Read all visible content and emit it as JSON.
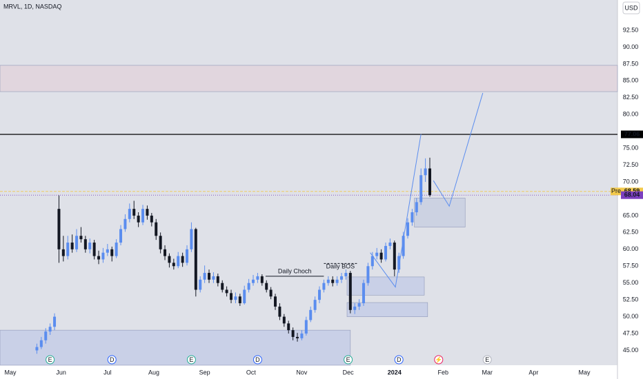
{
  "chart_data": {
    "type": "candlestick",
    "title": "MRVL, 1D, NASDAQ",
    "currency": "USD",
    "ylim": [
      42.8,
      97.0
    ],
    "xlim": [
      -4.7,
      275
    ],
    "yticks": [
      {
        "value": 45,
        "label": "45.00"
      },
      {
        "value": 47.5,
        "label": "47.50"
      },
      {
        "value": 50,
        "label": "50.00"
      },
      {
        "value": 52.5,
        "label": "52.50"
      },
      {
        "value": 55,
        "label": "55.00"
      },
      {
        "value": 57.5,
        "label": "57.50"
      },
      {
        "value": 60,
        "label": "60.00"
      },
      {
        "value": 62.5,
        "label": "62.50"
      },
      {
        "value": 65,
        "label": "65.00"
      },
      {
        "value": 70,
        "label": "70.00"
      },
      {
        "value": 72.5,
        "label": "72.50"
      },
      {
        "value": 75,
        "label": "75.00"
      },
      {
        "value": 80,
        "label": "80.00"
      },
      {
        "value": 82.5,
        "label": "82.50"
      },
      {
        "value": 85,
        "label": "85.00"
      },
      {
        "value": 87.5,
        "label": "87.50"
      },
      {
        "value": 90,
        "label": "90.00"
      },
      {
        "value": 92.5,
        "label": "92.50"
      }
    ],
    "xticks": [
      {
        "value": 0,
        "label": "May"
      },
      {
        "value": 23,
        "label": "Jun"
      },
      {
        "value": 44,
        "label": "Jul"
      },
      {
        "value": 65,
        "label": "Aug"
      },
      {
        "value": 88,
        "label": "Sep"
      },
      {
        "value": 109,
        "label": "Oct"
      },
      {
        "value": 132,
        "label": "Nov"
      },
      {
        "value": 153,
        "label": "Dec"
      },
      {
        "value": 174,
        "label": "2024"
      },
      {
        "value": 196,
        "label": "Feb"
      },
      {
        "value": 216,
        "label": "Mar"
      },
      {
        "value": 237,
        "label": "Apr"
      },
      {
        "value": 260,
        "label": "May"
      }
    ],
    "up_color": "#5b8def",
    "down_color": "#131722",
    "candles": [
      [
        12,
        45,
        46,
        44.5,
        45.5
      ],
      [
        14,
        45.5,
        47,
        45.2,
        46.5
      ],
      [
        16,
        46.5,
        48.3,
        46,
        47.8
      ],
      [
        18,
        47.8,
        49,
        47.3,
        48.5
      ],
      [
        20,
        48.5,
        50.5,
        48,
        50
      ],
      [
        22,
        66,
        68,
        58,
        60
      ],
      [
        24,
        60,
        62,
        58.2,
        59
      ],
      [
        26,
        59,
        62,
        58.5,
        61
      ],
      [
        28,
        61,
        62.2,
        59.5,
        60
      ],
      [
        30,
        60,
        63,
        59.6,
        62
      ],
      [
        32,
        62,
        63.3,
        61,
        61.5
      ],
      [
        34,
        61.5,
        62,
        59.5,
        60
      ],
      [
        36,
        60,
        61.6,
        59.4,
        61
      ],
      [
        38,
        61,
        61.4,
        58.5,
        59
      ],
      [
        40,
        59,
        59.8,
        57.8,
        58.5
      ],
      [
        42,
        58.5,
        60.2,
        58,
        59.5
      ],
      [
        44,
        59.5,
        60.8,
        59,
        60
      ],
      [
        46,
        60,
        60.4,
        58.2,
        59
      ],
      [
        48,
        59,
        61.5,
        58.7,
        61
      ],
      [
        50,
        61,
        63.6,
        60.6,
        63
      ],
      [
        52,
        63,
        65.2,
        62.6,
        64.5
      ],
      [
        54,
        64.5,
        66.8,
        64,
        66
      ],
      [
        56,
        66,
        67.2,
        64.5,
        65
      ],
      [
        58,
        65,
        65.5,
        63.3,
        64
      ],
      [
        60,
        64,
        66.6,
        63.6,
        66
      ],
      [
        62,
        66,
        66.5,
        64.4,
        65
      ],
      [
        64,
        65,
        65.4,
        63.4,
        64
      ],
      [
        66,
        64,
        64.5,
        61.4,
        62
      ],
      [
        68,
        62,
        62.5,
        59.4,
        60
      ],
      [
        70,
        60,
        60.6,
        58.4,
        59
      ],
      [
        72,
        59,
        59.4,
        57.3,
        58
      ],
      [
        74,
        58,
        58.6,
        57,
        57.5
      ],
      [
        76,
        57.5,
        59.6,
        57.2,
        59
      ],
      [
        78,
        59,
        59.5,
        57.4,
        58
      ],
      [
        80,
        58,
        60.6,
        57.6,
        60
      ],
      [
        82,
        60,
        64,
        59.6,
        63
      ],
      [
        84,
        63,
        63.2,
        53,
        54
      ],
      [
        86,
        54,
        56,
        53.6,
        55.5
      ],
      [
        88,
        55.5,
        57.6,
        55,
        56.5
      ],
      [
        90,
        56.5,
        57,
        55,
        55.5
      ],
      [
        92,
        55.5,
        56.6,
        55,
        56
      ],
      [
        94,
        56,
        56.4,
        54.5,
        55
      ],
      [
        96,
        55,
        55.4,
        53.6,
        54
      ],
      [
        98,
        54,
        54.5,
        53,
        53.5
      ],
      [
        100,
        53.5,
        54,
        52,
        52.5
      ],
      [
        102,
        52.5,
        53.6,
        52,
        53
      ],
      [
        104,
        53,
        53.4,
        51.6,
        52
      ],
      [
        106,
        52,
        54.6,
        51.8,
        54
      ],
      [
        108,
        54,
        55.6,
        53.6,
        55
      ],
      [
        110,
        55,
        56.2,
        54.6,
        55.5
      ],
      [
        112,
        55.5,
        56.5,
        55,
        56
      ],
      [
        114,
        56,
        56.3,
        54.6,
        55
      ],
      [
        116,
        55,
        55.4,
        53.6,
        54
      ],
      [
        118,
        54,
        54.4,
        52.6,
        53
      ],
      [
        120,
        53,
        53.4,
        51,
        51.5
      ],
      [
        122,
        51.5,
        52,
        49.5,
        50
      ],
      [
        124,
        50,
        50.4,
        48.5,
        49
      ],
      [
        126,
        49,
        49.4,
        47.5,
        48
      ],
      [
        128,
        48,
        48.4,
        46.5,
        47
      ],
      [
        130,
        47,
        47.6,
        46.3,
        46.8
      ],
      [
        132,
        46.8,
        48,
        46.5,
        47.5
      ],
      [
        134,
        47.5,
        50,
        47.2,
        49.5
      ],
      [
        136,
        49.5,
        51.5,
        49.2,
        51
      ],
      [
        138,
        51,
        53,
        50.6,
        52.5
      ],
      [
        140,
        52.5,
        54.5,
        52,
        54
      ],
      [
        142,
        54,
        55.5,
        53.6,
        55
      ],
      [
        144,
        55,
        56,
        54.6,
        55.5
      ],
      [
        146,
        55.5,
        56,
        54.5,
        55
      ],
      [
        148,
        55,
        56,
        54.6,
        55.5
      ],
      [
        150,
        55.5,
        56.5,
        55,
        56
      ],
      [
        152,
        56,
        57,
        55.5,
        56.5
      ],
      [
        154,
        56.5,
        56.8,
        50.5,
        51
      ],
      [
        156,
        51,
        52,
        50.4,
        51.5
      ],
      [
        158,
        51.5,
        52.6,
        51,
        52
      ],
      [
        160,
        52,
        55.5,
        51.6,
        55
      ],
      [
        162,
        55,
        58,
        54.6,
        57.5
      ],
      [
        164,
        57.5,
        59.6,
        57,
        59
      ],
      [
        166,
        59,
        60.2,
        58.5,
        59.5
      ],
      [
        168,
        59.5,
        60,
        58,
        58.5
      ],
      [
        170,
        58.5,
        61,
        58.2,
        60.5
      ],
      [
        172,
        60.5,
        61.6,
        60,
        61
      ],
      [
        174,
        61,
        61.3,
        56,
        57
      ],
      [
        176,
        57,
        59.5,
        56.5,
        59
      ],
      [
        178,
        59,
        62.6,
        58.6,
        62
      ],
      [
        180,
        62,
        64.6,
        61.6,
        64
      ],
      [
        182,
        64,
        66,
        63.5,
        65.5
      ],
      [
        184,
        65.5,
        67.6,
        65,
        67
      ],
      [
        186,
        67,
        72,
        66.6,
        71
      ],
      [
        188,
        71,
        73.5,
        70,
        72
      ],
      [
        190,
        72,
        73.6,
        67.8,
        68.04
      ]
    ],
    "zones": [
      {
        "x": [
          -4.7,
          275
        ],
        "y": [
          83.4,
          87.3
        ],
        "color": "#e2d4dc"
      },
      {
        "x": [
          183,
          206
        ],
        "y": [
          63.3,
          67.6
        ],
        "color": "#c9cfe0"
      },
      {
        "x": [
          152.5,
          187.5
        ],
        "y": [
          53.2,
          55.9
        ],
        "color": "#c5cde6"
      },
      {
        "x": [
          152.5,
          189
        ],
        "y": [
          50.0,
          52.1
        ],
        "color": "#c5cde6"
      },
      {
        "x": [
          -4.7,
          154
        ],
        "y": [
          42.8,
          48.0
        ],
        "color": "#c5cde6"
      }
    ],
    "annotations": [
      {
        "label": "Daily Choch",
        "x": [
          115.6,
          142
        ],
        "y": 56
      },
      {
        "label": "Daily BOS",
        "x": [
          142,
          157
        ],
        "y": 57.9
      }
    ],
    "paths": [
      [
        [
          163,
          59.5
        ],
        [
          174.4,
          54.4
        ],
        [
          186,
          77.1
        ]
      ],
      [
        [
          191.6,
          70.2
        ],
        [
          198.8,
          66.4
        ],
        [
          214,
          83.2
        ]
      ]
    ],
    "levels": [
      {
        "value": 77.06,
        "color": "#000000"
      },
      {
        "value": 68.59,
        "color": "#f2c94c",
        "label": "Pre"
      },
      {
        "value": 68.04,
        "color": "#7b3fbf"
      }
    ],
    "events": [
      {
        "x": 18,
        "label": "E"
      },
      {
        "x": 46,
        "label": "D"
      },
      {
        "x": 82,
        "label": "E"
      },
      {
        "x": 112,
        "label": "D"
      },
      {
        "x": 153,
        "label": "E"
      },
      {
        "x": 176,
        "label": "D"
      },
      {
        "x": 194,
        "label": "⚡"
      },
      {
        "x": 216,
        "label": "E"
      }
    ]
  }
}
